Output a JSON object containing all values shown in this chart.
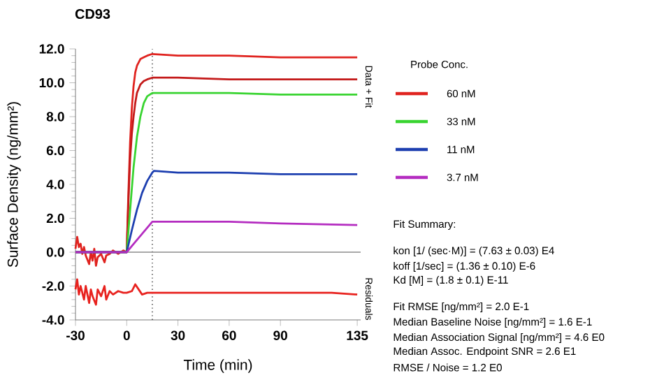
{
  "chart_data": {
    "type": "line",
    "title": "CD93",
    "xlabel": "Time (min)",
    "ylabel": "Surface Density (ng/mm²)",
    "xlim": [
      -30,
      137
    ],
    "ylim": [
      -4,
      12
    ],
    "xticks": [
      -30,
      0,
      30,
      60,
      90,
      135
    ],
    "yticks": [
      {
        "value": -4,
        "label": "-4.0"
      },
      {
        "value": -2,
        "label": "-2.0"
      },
      {
        "value": 0,
        "label": "0.0"
      },
      {
        "value": 2,
        "label": "2.0"
      },
      {
        "value": 4,
        "label": "4.0"
      },
      {
        "value": 6,
        "label": "6.0"
      },
      {
        "value": 8,
        "label": "8.0"
      },
      {
        "value": 10,
        "label": "10.0"
      },
      {
        "value": 12,
        "label": "12.0"
      }
    ],
    "legend": "right",
    "legend_title": "Probe Conc.",
    "series": [
      {
        "name": "60 nM",
        "color": "#e0231f",
        "x": [
          -30,
          -29,
          -28,
          -27,
          -26,
          -25,
          -24,
          -22,
          -21,
          -20,
          -19,
          -18,
          -17,
          -15,
          -13,
          -12,
          -10,
          -8,
          -5,
          -2,
          0,
          1,
          2,
          3,
          4,
          5,
          6,
          8,
          10,
          12,
          15,
          30,
          60,
          90,
          135
        ],
        "values": [
          0.2,
          0.9,
          0.3,
          0.5,
          -0.1,
          0.3,
          -0.2,
          -0.7,
          0.0,
          -0.5,
          0.2,
          -0.8,
          -0.3,
          -0.1,
          -0.6,
          -0.2,
          -0.1,
          0.1,
          -0.1,
          0.1,
          0,
          3.5,
          6.5,
          8.5,
          9.8,
          10.6,
          11.0,
          11.4,
          11.5,
          11.6,
          11.7,
          11.6,
          11.6,
          11.5,
          11.5
        ]
      },
      {
        "color": "#c41a1a",
        "x": [
          -30,
          0,
          1,
          2,
          3,
          4,
          5,
          6,
          8,
          10,
          12,
          15,
          30,
          60,
          90,
          135
        ],
        "values": [
          0,
          0,
          3,
          5.5,
          7,
          8,
          8.8,
          9.4,
          9.9,
          10.1,
          10.2,
          10.3,
          10.3,
          10.2,
          10.2,
          10.2
        ]
      },
      {
        "name": "33 nM",
        "color": "#38d430",
        "x": [
          -30,
          0,
          2,
          4,
          6,
          8,
          10,
          12,
          15,
          30,
          60,
          90,
          135
        ],
        "values": [
          0,
          0,
          2.5,
          5,
          6.8,
          8,
          8.8,
          9.2,
          9.4,
          9.4,
          9.4,
          9.3,
          9.3
        ]
      },
      {
        "name": "11 nM",
        "color": "#1d3fb0",
        "x": [
          -30,
          0,
          3,
          6,
          9,
          12,
          15,
          16,
          30,
          60,
          90,
          135
        ],
        "values": [
          0,
          0,
          1.3,
          2.5,
          3.5,
          4.2,
          4.7,
          4.8,
          4.7,
          4.7,
          4.6,
          4.6
        ]
      },
      {
        "name": "3.7 nM",
        "color": "#b42cc0",
        "x": [
          -30,
          0,
          5,
          10,
          15,
          30,
          60,
          90,
          135
        ],
        "values": [
          0,
          0,
          0.6,
          1.2,
          1.8,
          1.8,
          1.8,
          1.7,
          1.6
        ]
      },
      {
        "color": "#e8231f",
        "x": [
          -30,
          -29,
          -28,
          -27,
          -25,
          -24,
          -22,
          -21,
          -20,
          -18,
          -17,
          -15,
          -13,
          -12,
          -10,
          -8,
          -5,
          -2,
          0,
          3,
          5,
          7,
          9,
          12,
          15,
          30,
          60,
          90,
          120,
          135
        ],
        "values": [
          -2.2,
          -1.6,
          -2.5,
          -2.0,
          -2.8,
          -2.0,
          -3.0,
          -2.2,
          -2.6,
          -3.1,
          -2.2,
          -2.6,
          -2.0,
          -2.8,
          -2.3,
          -2.5,
          -2.3,
          -2.4,
          -2.4,
          -2.3,
          -1.9,
          -2.2,
          -2.5,
          -2.4,
          -2.4,
          -2.4,
          -2.4,
          -2.4,
          -2.4,
          -2.5
        ]
      }
    ],
    "ref_lines": [
      {
        "axis": "x",
        "value": 15,
        "color": "#333333",
        "line_style": "dotted"
      },
      {
        "axis": "y",
        "value": 0,
        "color": "#8c8c8c",
        "line_style": "solid"
      }
    ],
    "annotations": [
      "Data + Fit",
      "Residuals",
      "Fit Summary:",
      "kon [1/ (sec·M)] = (7.63 ± 0.03) E4",
      "koff [1/sec] = (1.36 ± 0.10) E-6",
      "Kd [M] = (1.8 ± 0.1) E-11",
      "Fit RMSE [ng/mm²] = 2.0 E-1",
      "Median Baseline Noise [ng/mm²] = 1.6 E-1",
      "Median Association Signal [ng/mm²] = 4.6 E0",
      "Median Assoc. Endpoint SNR = 2.6 E1",
      "RMSE / Noise = 1.2 E0"
    ]
  }
}
